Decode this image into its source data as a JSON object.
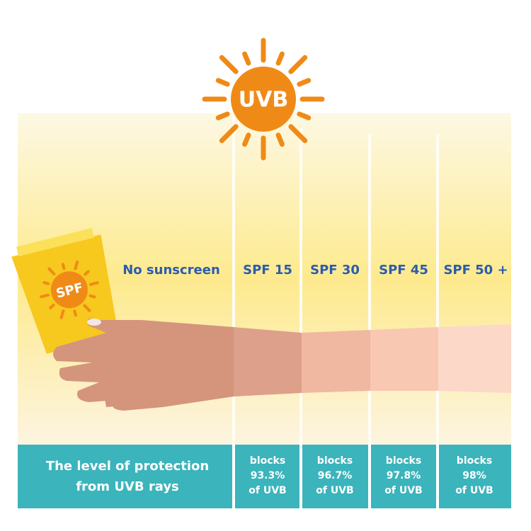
{
  "sun": {
    "label": "UVB"
  },
  "tube": {
    "label": "SPF"
  },
  "columns": [
    {
      "label": "No sunscreen"
    },
    {
      "label": "SPF 15",
      "protection": [
        "blocks",
        "93.3%",
        "of UVB"
      ]
    },
    {
      "label": "SPF 30",
      "protection": [
        "blocks",
        "96.7%",
        "of UVB"
      ]
    },
    {
      "label": "SPF 45",
      "protection": [
        "blocks",
        "97.8%",
        "of UVB"
      ]
    },
    {
      "label": "SPF 50 +",
      "protection": [
        "blocks",
        "98%",
        "of UVB"
      ]
    }
  ],
  "footer": {
    "lines": [
      "The level of protection",
      "from UVB rays"
    ]
  }
}
